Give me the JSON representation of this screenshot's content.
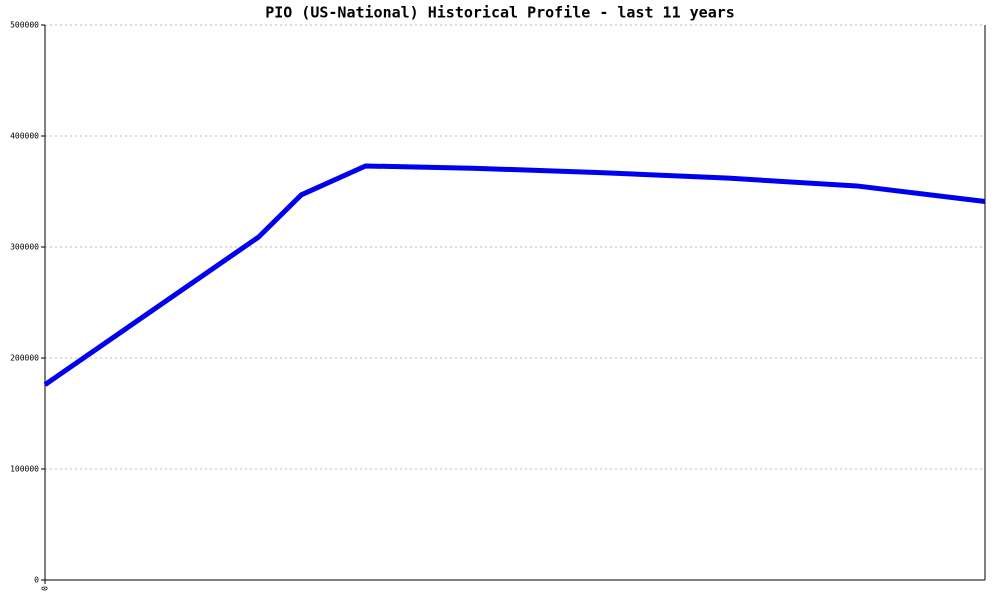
{
  "chart_data": {
    "type": "line",
    "title": "PIO (US-National) Historical Profile - last 11 years",
    "x": [
      0,
      2.5,
      3,
      3.75,
      5,
      6.5,
      8,
      9.5,
      11
    ],
    "series": [
      {
        "color": "#0000ee",
        "values": [
          176000,
          309000,
          347000,
          373000,
          371000,
          367000,
          362000,
          355000,
          341000
        ]
      }
    ],
    "xlim": [
      0,
      11
    ],
    "xticks": [
      0
    ],
    "ylim": [
      0,
      500000
    ],
    "yticks": [
      0,
      100000,
      200000,
      300000,
      400000,
      500000
    ],
    "grid": true
  }
}
